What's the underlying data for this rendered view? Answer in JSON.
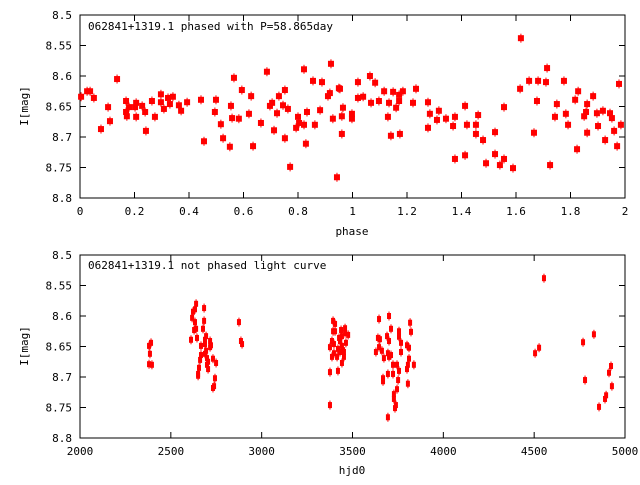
{
  "chart_data": [
    {
      "type": "scatter",
      "title": "062841+1319.1 phased with P=58.865day",
      "xlabel": "phase",
      "ylabel": "I[mag]",
      "xlim": [
        0,
        2
      ],
      "ylim": [
        8.8,
        8.5
      ],
      "y_inverted": true,
      "xticks": [
        0,
        0.2,
        0.4,
        0.6,
        0.8,
        1,
        1.2,
        1.4,
        1.6,
        1.8,
        2
      ],
      "xtick_labels": [
        "0",
        "0.2",
        "0.4",
        "0.6",
        "0.8",
        "1",
        "1.2",
        "1.4",
        "1.6",
        "1.8",
        "2"
      ],
      "yticks": [
        8.5,
        8.55,
        8.6,
        8.65,
        8.7,
        8.75,
        8.8
      ],
      "ytick_labels": [
        "8.5",
        "8.55",
        "8.6",
        "8.65",
        "8.7",
        "8.75",
        "8.8"
      ],
      "grid": false,
      "marker_color": "#ff0000",
      "points": [
        [
          0.004,
          8.634
        ],
        [
          0.026,
          8.625
        ],
        [
          0.037,
          8.625
        ],
        [
          0.051,
          8.636
        ],
        [
          0.077,
          8.687
        ],
        [
          0.103,
          8.651
        ],
        [
          0.11,
          8.674
        ],
        [
          0.136,
          8.605
        ],
        [
          0.169,
          8.641
        ],
        [
          0.169,
          8.659
        ],
        [
          0.172,
          8.666
        ],
        [
          0.18,
          8.651
        ],
        [
          0.202,
          8.651
        ],
        [
          0.206,
          8.644
        ],
        [
          0.206,
          8.667
        ],
        [
          0.228,
          8.649
        ],
        [
          0.239,
          8.659
        ],
        [
          0.242,
          8.69
        ],
        [
          0.264,
          8.641
        ],
        [
          0.275,
          8.667
        ],
        [
          0.297,
          8.63
        ],
        [
          0.297,
          8.643
        ],
        [
          0.308,
          8.654
        ],
        [
          0.323,
          8.636
        ],
        [
          0.33,
          8.646
        ],
        [
          0.341,
          8.634
        ],
        [
          0.363,
          8.648
        ],
        [
          0.371,
          8.657
        ],
        [
          0.393,
          8.643
        ],
        [
          0.444,
          8.639
        ],
        [
          0.455,
          8.707
        ],
        [
          0.495,
          8.659
        ],
        [
          0.499,
          8.639
        ],
        [
          0.517,
          8.679
        ],
        [
          0.525,
          8.702
        ],
        [
          0.55,
          8.716
        ],
        [
          0.554,
          8.649
        ],
        [
          0.558,
          8.669
        ],
        [
          0.565,
          8.603
        ],
        [
          0.583,
          8.67
        ],
        [
          0.594,
          8.623
        ],
        [
          0.62,
          8.662
        ],
        [
          0.628,
          8.633
        ],
        [
          0.635,
          8.715
        ],
        [
          0.664,
          8.677
        ],
        [
          0.686,
          8.593
        ],
        [
          0.697,
          8.649
        ],
        [
          0.705,
          8.644
        ],
        [
          0.712,
          8.689
        ],
        [
          0.723,
          8.661
        ],
        [
          0.73,
          8.633
        ],
        [
          0.745,
          8.648
        ],
        [
          0.752,
          8.623
        ],
        [
          0.752,
          8.702
        ],
        [
          0.763,
          8.654
        ],
        [
          0.771,
          8.749
        ],
        [
          0.793,
          8.685
        ],
        [
          0.8,
          8.667
        ],
        [
          0.804,
          8.677
        ],
        [
          0.822,
          8.589
        ],
        [
          0.822,
          8.68
        ],
        [
          0.829,
          8.711
        ],
        [
          0.833,
          8.659
        ],
        [
          0.855,
          8.608
        ],
        [
          0.862,
          8.68
        ],
        [
          0.881,
          8.656
        ],
        [
          0.888,
          8.61
        ],
        [
          0.91,
          8.633
        ],
        [
          0.917,
          8.628
        ],
        [
          0.921,
          8.58
        ],
        [
          0.928,
          8.67
        ],
        [
          0.943,
          8.766
        ],
        [
          0.95,
          8.62
        ],
        [
          0.954,
          8.621
        ],
        [
          0.961,
          8.666
        ],
        [
          0.961,
          8.695
        ],
        [
          0.965,
          8.652
        ],
        [
          0.998,
          8.662
        ],
        [
          0.998,
          8.67
        ],
        [
          1.02,
          8.61
        ],
        [
          1.02,
          8.636
        ],
        [
          1.039,
          8.634
        ],
        [
          1.064,
          8.6
        ],
        [
          1.068,
          8.644
        ],
        [
          1.083,
          8.611
        ],
        [
          1.097,
          8.641
        ],
        [
          1.116,
          8.625
        ],
        [
          1.13,
          8.667
        ],
        [
          1.134,
          8.644
        ],
        [
          1.141,
          8.698
        ],
        [
          1.149,
          8.626
        ],
        [
          1.16,
          8.652
        ],
        [
          1.171,
          8.631
        ],
        [
          1.171,
          8.641
        ],
        [
          1.174,
          8.695
        ],
        [
          1.185,
          8.625
        ],
        [
          1.222,
          8.644
        ],
        [
          1.233,
          8.621
        ],
        [
          1.277,
          8.643
        ],
        [
          1.277,
          8.685
        ],
        [
          1.284,
          8.662
        ],
        [
          1.31,
          8.672
        ],
        [
          1.317,
          8.657
        ],
        [
          1.343,
          8.67
        ],
        [
          1.369,
          8.682
        ],
        [
          1.376,
          8.667
        ],
        [
          1.376,
          8.736
        ],
        [
          1.413,
          8.649
        ],
        [
          1.413,
          8.73
        ],
        [
          1.42,
          8.68
        ],
        [
          1.453,
          8.68
        ],
        [
          1.453,
          8.695
        ],
        [
          1.461,
          8.664
        ],
        [
          1.479,
          8.705
        ],
        [
          1.49,
          8.743
        ],
        [
          1.523,
          8.692
        ],
        [
          1.523,
          8.728
        ],
        [
          1.541,
          8.746
        ],
        [
          1.556,
          8.651
        ],
        [
          1.556,
          8.736
        ],
        [
          1.589,
          8.751
        ],
        [
          1.615,
          8.621
        ],
        [
          1.618,
          8.538
        ],
        [
          1.648,
          8.608
        ],
        [
          1.666,
          8.693
        ],
        [
          1.677,
          8.641
        ],
        [
          1.681,
          8.608
        ],
        [
          1.71,
          8.61
        ],
        [
          1.714,
          8.587
        ],
        [
          1.725,
          8.746
        ],
        [
          1.743,
          8.667
        ],
        [
          1.75,
          8.646
        ],
        [
          1.776,
          8.608
        ],
        [
          1.783,
          8.662
        ],
        [
          1.791,
          8.68
        ],
        [
          1.817,
          8.639
        ],
        [
          1.824,
          8.72
        ],
        [
          1.828,
          8.625
        ],
        [
          1.85,
          8.666
        ],
        [
          1.857,
          8.659
        ],
        [
          1.861,
          8.646
        ],
        [
          1.861,
          8.693
        ],
        [
          1.883,
          8.633
        ],
        [
          1.897,
          8.661
        ],
        [
          1.901,
          8.682
        ],
        [
          1.919,
          8.657
        ],
        [
          1.927,
          8.705
        ],
        [
          1.945,
          8.661
        ],
        [
          1.952,
          8.669
        ],
        [
          1.96,
          8.69
        ],
        [
          1.971,
          8.715
        ],
        [
          1.978,
          8.613
        ],
        [
          1.985,
          8.68
        ]
      ]
    },
    {
      "type": "scatter",
      "title": "062841+1319.1 not phased light curve",
      "xlabel": "hjd0",
      "ylabel": "I[mag]",
      "xlim": [
        2000,
        5000
      ],
      "ylim": [
        8.8,
        8.5
      ],
      "y_inverted": true,
      "xticks": [
        2000,
        2500,
        3000,
        3500,
        4000,
        4500,
        5000
      ],
      "xtick_labels": [
        "2000",
        "2500",
        "3000",
        "3500",
        "4000",
        "4500",
        "5000"
      ],
      "yticks": [
        8.5,
        8.55,
        8.6,
        8.65,
        8.7,
        8.75,
        8.8
      ],
      "ytick_labels": [
        "8.5",
        "8.55",
        "8.6",
        "8.65",
        "8.7",
        "8.75",
        "8.8"
      ],
      "grid": false,
      "marker_color": "#ff0000",
      "points": [
        [
          2391,
          8.644
        ],
        [
          2380,
          8.649
        ],
        [
          2385,
          8.662
        ],
        [
          2380,
          8.679
        ],
        [
          2396,
          8.68
        ],
        [
          2639,
          8.58
        ],
        [
          2633,
          8.589
        ],
        [
          2622,
          8.593
        ],
        [
          2683,
          8.587
        ],
        [
          2617,
          8.603
        ],
        [
          2633,
          8.61
        ],
        [
          2683,
          8.608
        ],
        [
          2628,
          8.623
        ],
        [
          2639,
          8.621
        ],
        [
          2677,
          8.621
        ],
        [
          2611,
          8.639
        ],
        [
          2644,
          8.636
        ],
        [
          2694,
          8.633
        ],
        [
          2688,
          8.639
        ],
        [
          2716,
          8.641
        ],
        [
          2721,
          8.648
        ],
        [
          2688,
          8.646
        ],
        [
          2666,
          8.649
        ],
        [
          2716,
          8.651
        ],
        [
          2694,
          8.657
        ],
        [
          2688,
          8.662
        ],
        [
          2666,
          8.664
        ],
        [
          2699,
          8.669
        ],
        [
          2661,
          8.672
        ],
        [
          2732,
          8.67
        ],
        [
          2749,
          8.677
        ],
        [
          2705,
          8.675
        ],
        [
          2699,
          8.68
        ],
        [
          2705,
          8.687
        ],
        [
          2655,
          8.685
        ],
        [
          2650,
          8.695
        ],
        [
          2650,
          8.698
        ],
        [
          2743,
          8.702
        ],
        [
          2738,
          8.715
        ],
        [
          2732,
          8.718
        ],
        [
          2875,
          8.61
        ],
        [
          2886,
          8.641
        ],
        [
          2892,
          8.646
        ],
        [
          3393,
          8.608
        ],
        [
          3404,
          8.613
        ],
        [
          3393,
          8.625
        ],
        [
          3404,
          8.625
        ],
        [
          3437,
          8.623
        ],
        [
          3459,
          8.62
        ],
        [
          3459,
          8.628
        ],
        [
          3476,
          8.631
        ],
        [
          3442,
          8.633
        ],
        [
          3426,
          8.636
        ],
        [
          3431,
          8.641
        ],
        [
          3387,
          8.641
        ],
        [
          3398,
          8.646
        ],
        [
          3464,
          8.644
        ],
        [
          3442,
          8.649
        ],
        [
          3376,
          8.651
        ],
        [
          3420,
          8.654
        ],
        [
          3448,
          8.656
        ],
        [
          3431,
          8.659
        ],
        [
          3398,
          8.661
        ],
        [
          3453,
          8.659
        ],
        [
          3387,
          8.667
        ],
        [
          3415,
          8.667
        ],
        [
          3453,
          8.667
        ],
        [
          3442,
          8.677
        ],
        [
          3376,
          8.692
        ],
        [
          3420,
          8.69
        ],
        [
          3376,
          8.746
        ],
        [
          3701,
          8.6
        ],
        [
          3646,
          8.605
        ],
        [
          3817,
          8.611
        ],
        [
          3712,
          8.621
        ],
        [
          3756,
          8.625
        ],
        [
          3822,
          8.626
        ],
        [
          3690,
          8.633
        ],
        [
          3756,
          8.634
        ],
        [
          3640,
          8.636
        ],
        [
          3651,
          8.638
        ],
        [
          3701,
          8.641
        ],
        [
          3767,
          8.644
        ],
        [
          3800,
          8.648
        ],
        [
          3646,
          8.651
        ],
        [
          3811,
          8.652
        ],
        [
          3662,
          8.657
        ],
        [
          3629,
          8.659
        ],
        [
          3695,
          8.661
        ],
        [
          3767,
          8.659
        ],
        [
          3712,
          8.664
        ],
        [
          3701,
          8.667
        ],
        [
          3673,
          8.669
        ],
        [
          3811,
          8.67
        ],
        [
          3723,
          8.68
        ],
        [
          3745,
          8.68
        ],
        [
          3805,
          8.68
        ],
        [
          3838,
          8.68
        ],
        [
          3800,
          8.687
        ],
        [
          3756,
          8.69
        ],
        [
          3695,
          8.695
        ],
        [
          3723,
          8.695
        ],
        [
          3668,
          8.702
        ],
        [
          3668,
          8.707
        ],
        [
          3751,
          8.705
        ],
        [
          3805,
          8.711
        ],
        [
          3745,
          8.72
        ],
        [
          3728,
          8.728
        ],
        [
          3728,
          8.736
        ],
        [
          3739,
          8.746
        ],
        [
          3734,
          8.751
        ],
        [
          3695,
          8.766
        ],
        [
          4554,
          8.538
        ],
        [
          4527,
          8.652
        ],
        [
          4505,
          8.661
        ],
        [
          4769,
          8.643
        ],
        [
          4829,
          8.63
        ],
        [
          4780,
          8.705
        ],
        [
          4923,
          8.682
        ],
        [
          4912,
          8.693
        ],
        [
          4928,
          8.715
        ],
        [
          4896,
          8.73
        ],
        [
          4890,
          8.736
        ],
        [
          4857,
          8.749
        ]
      ]
    }
  ]
}
